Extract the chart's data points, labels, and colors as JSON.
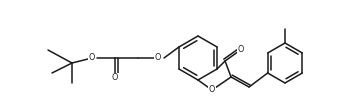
{
  "bg_color": "#ffffff",
  "line_color": "#1a1a1a",
  "line_width": 1.1,
  "figsize": [
    3.46,
    1.08
  ],
  "dpi": 100,
  "xlim": [
    0,
    346
  ],
  "ylim": [
    0,
    108
  ]
}
